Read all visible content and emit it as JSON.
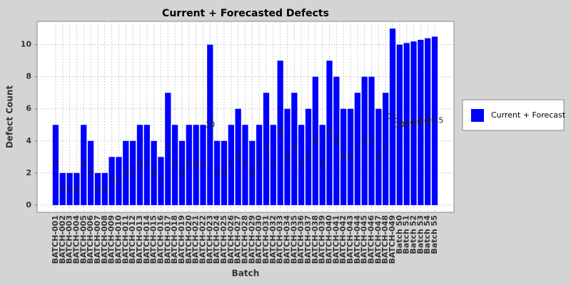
{
  "chart_data": {
    "type": "bar",
    "title": "Current + Forecasted Defects",
    "x_label": "Batch",
    "y_label": "Defect Count",
    "categories": [
      "BATCH-001",
      "BATCH-002",
      "BATCH-003",
      "BATCH-004",
      "BATCH-005",
      "BATCH-006",
      "BATCH-007",
      "BATCH-008",
      "BATCH-009",
      "BATCH-010",
      "BATCH-011",
      "BATCH-012",
      "BATCH-013",
      "BATCH-014",
      "BATCH-015",
      "BATCH-016",
      "BATCH-017",
      "BATCH-018",
      "BATCH-019",
      "BATCH-020",
      "BATCH-021",
      "BATCH-022",
      "BATCH-023",
      "BATCH-024",
      "BATCH-025",
      "BATCH-026",
      "BATCH-027",
      "BATCH-028",
      "BATCH-029",
      "BATCH-030",
      "BATCH-031",
      "BATCH-032",
      "BATCH-033",
      "BATCH-034",
      "BATCH-035",
      "BATCH-036",
      "BATCH-037",
      "BATCH-038",
      "BATCH-039",
      "BATCH-040",
      "BATCH-041",
      "BATCH-042",
      "BATCH-043",
      "BATCH-044",
      "BATCH-045",
      "BATCH-046",
      "BATCH-047",
      "BATCH-048",
      "BATCH-049",
      "Batch 50",
      "Batch 51",
      "Batch 52",
      "Batch 53",
      "Batch 54",
      "Batch 55"
    ],
    "series": [
      {
        "name": "Current + Forecast",
        "color": "#0000ff",
        "values": [
          5,
          2,
          2,
          2,
          5,
          4,
          2,
          2,
          3,
          3,
          4,
          4,
          5,
          5,
          4,
          3,
          7,
          5,
          4,
          5,
          5,
          5,
          10,
          4,
          4,
          5,
          6,
          5,
          4,
          5,
          7,
          5,
          9,
          6,
          7,
          5,
          6,
          8,
          5,
          9,
          8,
          6,
          6,
          7,
          8,
          8,
          6,
          7,
          11,
          10,
          10.1,
          10.2,
          10.3,
          10.4,
          10.5
        ]
      }
    ],
    "ylim": [
      -0.45,
      11.45
    ],
    "yticks": [
      0,
      2,
      4,
      6,
      8,
      10
    ],
    "grid": true,
    "legend": "right"
  }
}
